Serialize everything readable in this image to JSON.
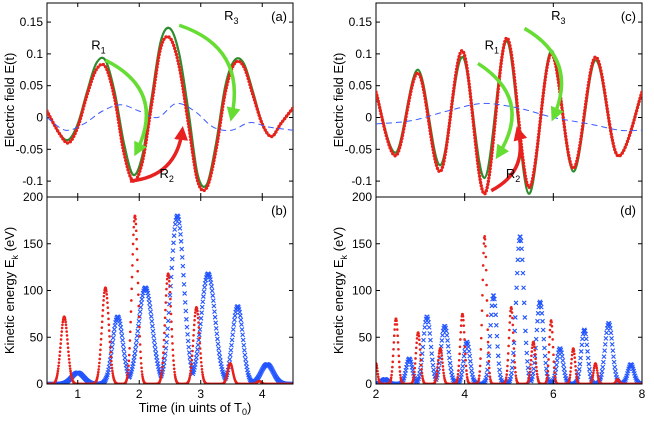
{
  "chart_data": [
    {
      "id": "a",
      "type": "line",
      "panel_label": "(a)",
      "ylabel": "Electric field E(t)",
      "xlim": [
        0.5,
        4.5
      ],
      "ylim": [
        -0.125,
        0.18
      ],
      "yticks": [
        -0.1,
        -0.05,
        0,
        0.05,
        0.1,
        0.15
      ],
      "ytick_labels": [
        "-0.1",
        "-0.05",
        "0",
        "0.05",
        "0.1",
        "0.15"
      ],
      "xticks": [
        1,
        2,
        3,
        4
      ],
      "series": [
        {
          "style": "green-solid",
          "color": "#2e8b2e",
          "x": [
            0.5,
            0.7,
            0.85,
            1.0,
            1.15,
            1.3,
            1.45,
            1.6,
            1.75,
            1.9,
            2.05,
            2.2,
            2.35,
            2.5,
            2.65,
            2.8,
            2.95,
            3.1,
            3.25,
            3.4,
            3.55,
            3.7,
            3.85,
            4.0,
            4.15,
            4.3,
            4.5
          ],
          "y": [
            0.01,
            -0.025,
            -0.035,
            -0.01,
            0.04,
            0.085,
            0.09,
            0.04,
            -0.04,
            -0.09,
            -0.06,
            0.03,
            0.12,
            0.14,
            0.1,
            0.01,
            -0.09,
            -0.105,
            -0.04,
            0.05,
            0.09,
            0.085,
            0.04,
            -0.01,
            -0.03,
            -0.01,
            0.015
          ]
        },
        {
          "style": "red-dots",
          "color": "#e8201a",
          "x": [
            0.5,
            0.7,
            0.85,
            1.0,
            1.15,
            1.3,
            1.45,
            1.6,
            1.75,
            1.9,
            2.05,
            2.2,
            2.35,
            2.5,
            2.65,
            2.8,
            2.95,
            3.1,
            3.25,
            3.4,
            3.55,
            3.7,
            3.85,
            4.0,
            4.15,
            4.3,
            4.5
          ],
          "y": [
            0.01,
            -0.025,
            -0.04,
            -0.015,
            0.035,
            0.075,
            0.08,
            0.03,
            -0.055,
            -0.1,
            -0.07,
            0.02,
            0.11,
            0.125,
            0.08,
            -0.01,
            -0.1,
            -0.11,
            -0.05,
            0.04,
            0.085,
            0.08,
            0.035,
            -0.01,
            -0.03,
            -0.01,
            0.015
          ]
        },
        {
          "style": "blue-dashed",
          "color": "#3b5bff",
          "x": [
            0.5,
            0.8,
            1.1,
            1.4,
            1.7,
            2.0,
            2.3,
            2.6,
            2.9,
            3.2,
            3.5,
            3.8,
            4.1,
            4.5
          ],
          "y": [
            0.0,
            -0.02,
            -0.01,
            0.01,
            0.02,
            0.01,
            0.0,
            0.022,
            0.01,
            -0.015,
            -0.02,
            -0.008,
            -0.015,
            -0.02
          ]
        }
      ],
      "annotations": [
        {
          "text": "R",
          "sub": "1",
          "x": 1.22,
          "y": 0.107,
          "color": "#000000"
        },
        {
          "text": "R",
          "sub": "3",
          "x": 3.38,
          "y": 0.153,
          "color": "#000000"
        },
        {
          "text": "R",
          "sub": "2",
          "x": 2.33,
          "y": -0.095,
          "color": "#000000"
        }
      ],
      "arrows": [
        {
          "color": "#66dd33",
          "from": [
            1.45,
            0.09
          ],
          "to": [
            1.95,
            -0.055
          ],
          "bend": -0.5
        },
        {
          "color": "#66dd33",
          "from": [
            2.65,
            0.145
          ],
          "to": [
            3.5,
            0.0
          ],
          "bend": -0.45
        },
        {
          "color": "#e82020",
          "from": [
            1.85,
            -0.1
          ],
          "to": [
            2.7,
            -0.02
          ],
          "bend": 0.4
        }
      ]
    },
    {
      "id": "b",
      "type": "scatter",
      "panel_label": "(b)",
      "ylabel": "Kinetic energy E_k (eV)",
      "xlabel": "Time (in uints of T_0)",
      "xlim": [
        0.5,
        4.5
      ],
      "ylim": [
        0,
        200
      ],
      "yticks": [
        0,
        50,
        100,
        150,
        200
      ],
      "ytick_labels": [
        "0",
        "50",
        "100",
        "150",
        "200"
      ],
      "xticks": [
        1,
        2,
        3,
        4
      ],
      "xtick_labels": [
        "1",
        "2",
        "3",
        "4"
      ],
      "peaks_red": [
        {
          "c": 0.78,
          "h": 72,
          "w": 0.08
        },
        {
          "c": 1.45,
          "h": 103,
          "w": 0.08
        },
        {
          "c": 1.93,
          "h": 180,
          "w": 0.07
        },
        {
          "c": 2.47,
          "h": 118,
          "w": 0.07
        },
        {
          "c": 2.93,
          "h": 82,
          "w": 0.07
        },
        {
          "c": 3.48,
          "h": 22,
          "w": 0.06
        },
        {
          "c": 3.95,
          "h": 3,
          "w": 0.05
        }
      ],
      "peaks_blue": [
        {
          "c": 1.0,
          "h": 12,
          "w": 0.14
        },
        {
          "c": 1.65,
          "h": 72,
          "w": 0.12
        },
        {
          "c": 2.1,
          "h": 103,
          "w": 0.16
        },
        {
          "c": 2.62,
          "h": 180,
          "w": 0.15
        },
        {
          "c": 3.12,
          "h": 118,
          "w": 0.16
        },
        {
          "c": 3.6,
          "h": 83,
          "w": 0.12
        },
        {
          "c": 4.08,
          "h": 21,
          "w": 0.14
        }
      ]
    },
    {
      "id": "c",
      "type": "line",
      "panel_label": "(c)",
      "xlim": [
        2,
        8
      ],
      "ylim": [
        -0.125,
        0.18
      ],
      "yticks": [
        -0.1,
        -0.05,
        0,
        0.05,
        0.1,
        0.15
      ],
      "ytick_labels": [
        "-0.1",
        "-0.05",
        "0",
        "0.05",
        "0.1",
        "0.15"
      ],
      "ylabel": "Electric field E(t)",
      "xticks": [
        2,
        4,
        6,
        8
      ],
      "green_peaks": [
        [
          2.0,
          0.04
        ],
        [
          2.45,
          -0.055
        ],
        [
          2.95,
          0.075
        ],
        [
          3.45,
          -0.075
        ],
        [
          3.95,
          0.095
        ],
        [
          4.45,
          -0.095
        ],
        [
          4.95,
          0.12
        ],
        [
          5.45,
          -0.12
        ],
        [
          5.95,
          0.105
        ],
        [
          6.45,
          -0.085
        ],
        [
          6.95,
          0.09
        ],
        [
          7.45,
          -0.06
        ],
        [
          8.0,
          0.04
        ]
      ],
      "red_peaks": [
        [
          2.0,
          0.04
        ],
        [
          2.45,
          -0.06
        ],
        [
          2.95,
          0.07
        ],
        [
          3.45,
          -0.085
        ],
        [
          3.95,
          0.105
        ],
        [
          4.45,
          -0.12
        ],
        [
          4.95,
          0.125
        ],
        [
          5.45,
          -0.11
        ],
        [
          5.95,
          0.1
        ],
        [
          6.45,
          -0.08
        ],
        [
          6.95,
          0.095
        ],
        [
          7.45,
          -0.06
        ],
        [
          8.0,
          0.04
        ]
      ],
      "blue_points": [
        [
          2.0,
          -0.01
        ],
        [
          2.8,
          -0.005
        ],
        [
          3.6,
          0.01
        ],
        [
          4.4,
          0.022
        ],
        [
          5.2,
          0.015
        ],
        [
          6.0,
          0.0
        ],
        [
          6.8,
          -0.01
        ],
        [
          7.5,
          -0.02
        ],
        [
          8.0,
          -0.02
        ]
      ],
      "annotations": [
        {
          "text": "R",
          "sub": "1",
          "x": 4.45,
          "y": 0.107,
          "color": "#000000"
        },
        {
          "text": "R",
          "sub": "3",
          "x": 5.95,
          "y": 0.153,
          "color": "#000000"
        },
        {
          "text": "R",
          "sub": "2",
          "x": 4.93,
          "y": -0.095,
          "color": "#000000"
        }
      ],
      "arrows": [
        {
          "color": "#66dd33",
          "from": [
            4.3,
            0.085
          ],
          "to": [
            4.75,
            -0.06
          ],
          "bend": -0.5
        },
        {
          "color": "#66dd33",
          "from": [
            5.35,
            0.14
          ],
          "to": [
            6.0,
            0.0
          ],
          "bend": -0.45
        },
        {
          "color": "#e82020",
          "from": [
            4.6,
            -0.115
          ],
          "to": [
            5.2,
            -0.02
          ],
          "bend": 0.4
        }
      ]
    },
    {
      "id": "d",
      "type": "scatter",
      "panel_label": "(d)",
      "ylabel": "Kinetic energy E_k (eV)",
      "xlim": [
        2,
        8
      ],
      "ylim": [
        0,
        200
      ],
      "yticks": [
        0,
        50,
        100,
        150,
        200
      ],
      "ytick_labels": [
        "0",
        "50",
        "100",
        "150",
        "200"
      ],
      "xticks": [
        2,
        4,
        6,
        8
      ],
      "xtick_labels": [
        "2",
        "4",
        "6",
        "8"
      ],
      "peaks_red": [
        {
          "c": 2.0,
          "h": 22,
          "w": 0.05
        },
        {
          "c": 2.45,
          "h": 70,
          "w": 0.07
        },
        {
          "c": 2.95,
          "h": 55,
          "w": 0.07
        },
        {
          "c": 3.45,
          "h": 38,
          "w": 0.07
        },
        {
          "c": 3.95,
          "h": 75,
          "w": 0.07
        },
        {
          "c": 4.45,
          "h": 158,
          "w": 0.07
        },
        {
          "c": 5.05,
          "h": 82,
          "w": 0.07
        },
        {
          "c": 5.55,
          "h": 45,
          "w": 0.07
        },
        {
          "c": 5.95,
          "h": 68,
          "w": 0.06
        },
        {
          "c": 6.45,
          "h": 38,
          "w": 0.06
        },
        {
          "c": 6.95,
          "h": 22,
          "w": 0.06
        },
        {
          "c": 7.45,
          "h": 5,
          "w": 0.05
        }
      ],
      "peaks_blue": [
        {
          "c": 2.2,
          "h": 5,
          "w": 0.1
        },
        {
          "c": 2.75,
          "h": 27,
          "w": 0.1
        },
        {
          "c": 3.15,
          "h": 72,
          "w": 0.12
        },
        {
          "c": 3.55,
          "h": 62,
          "w": 0.12
        },
        {
          "c": 4.05,
          "h": 45,
          "w": 0.1
        },
        {
          "c": 4.65,
          "h": 95,
          "w": 0.1
        },
        {
          "c": 5.25,
          "h": 158,
          "w": 0.12
        },
        {
          "c": 5.7,
          "h": 88,
          "w": 0.11
        },
        {
          "c": 6.15,
          "h": 38,
          "w": 0.1
        },
        {
          "c": 6.7,
          "h": 58,
          "w": 0.1
        },
        {
          "c": 7.25,
          "h": 65,
          "w": 0.12
        },
        {
          "c": 7.75,
          "h": 21,
          "w": 0.1
        }
      ]
    }
  ]
}
